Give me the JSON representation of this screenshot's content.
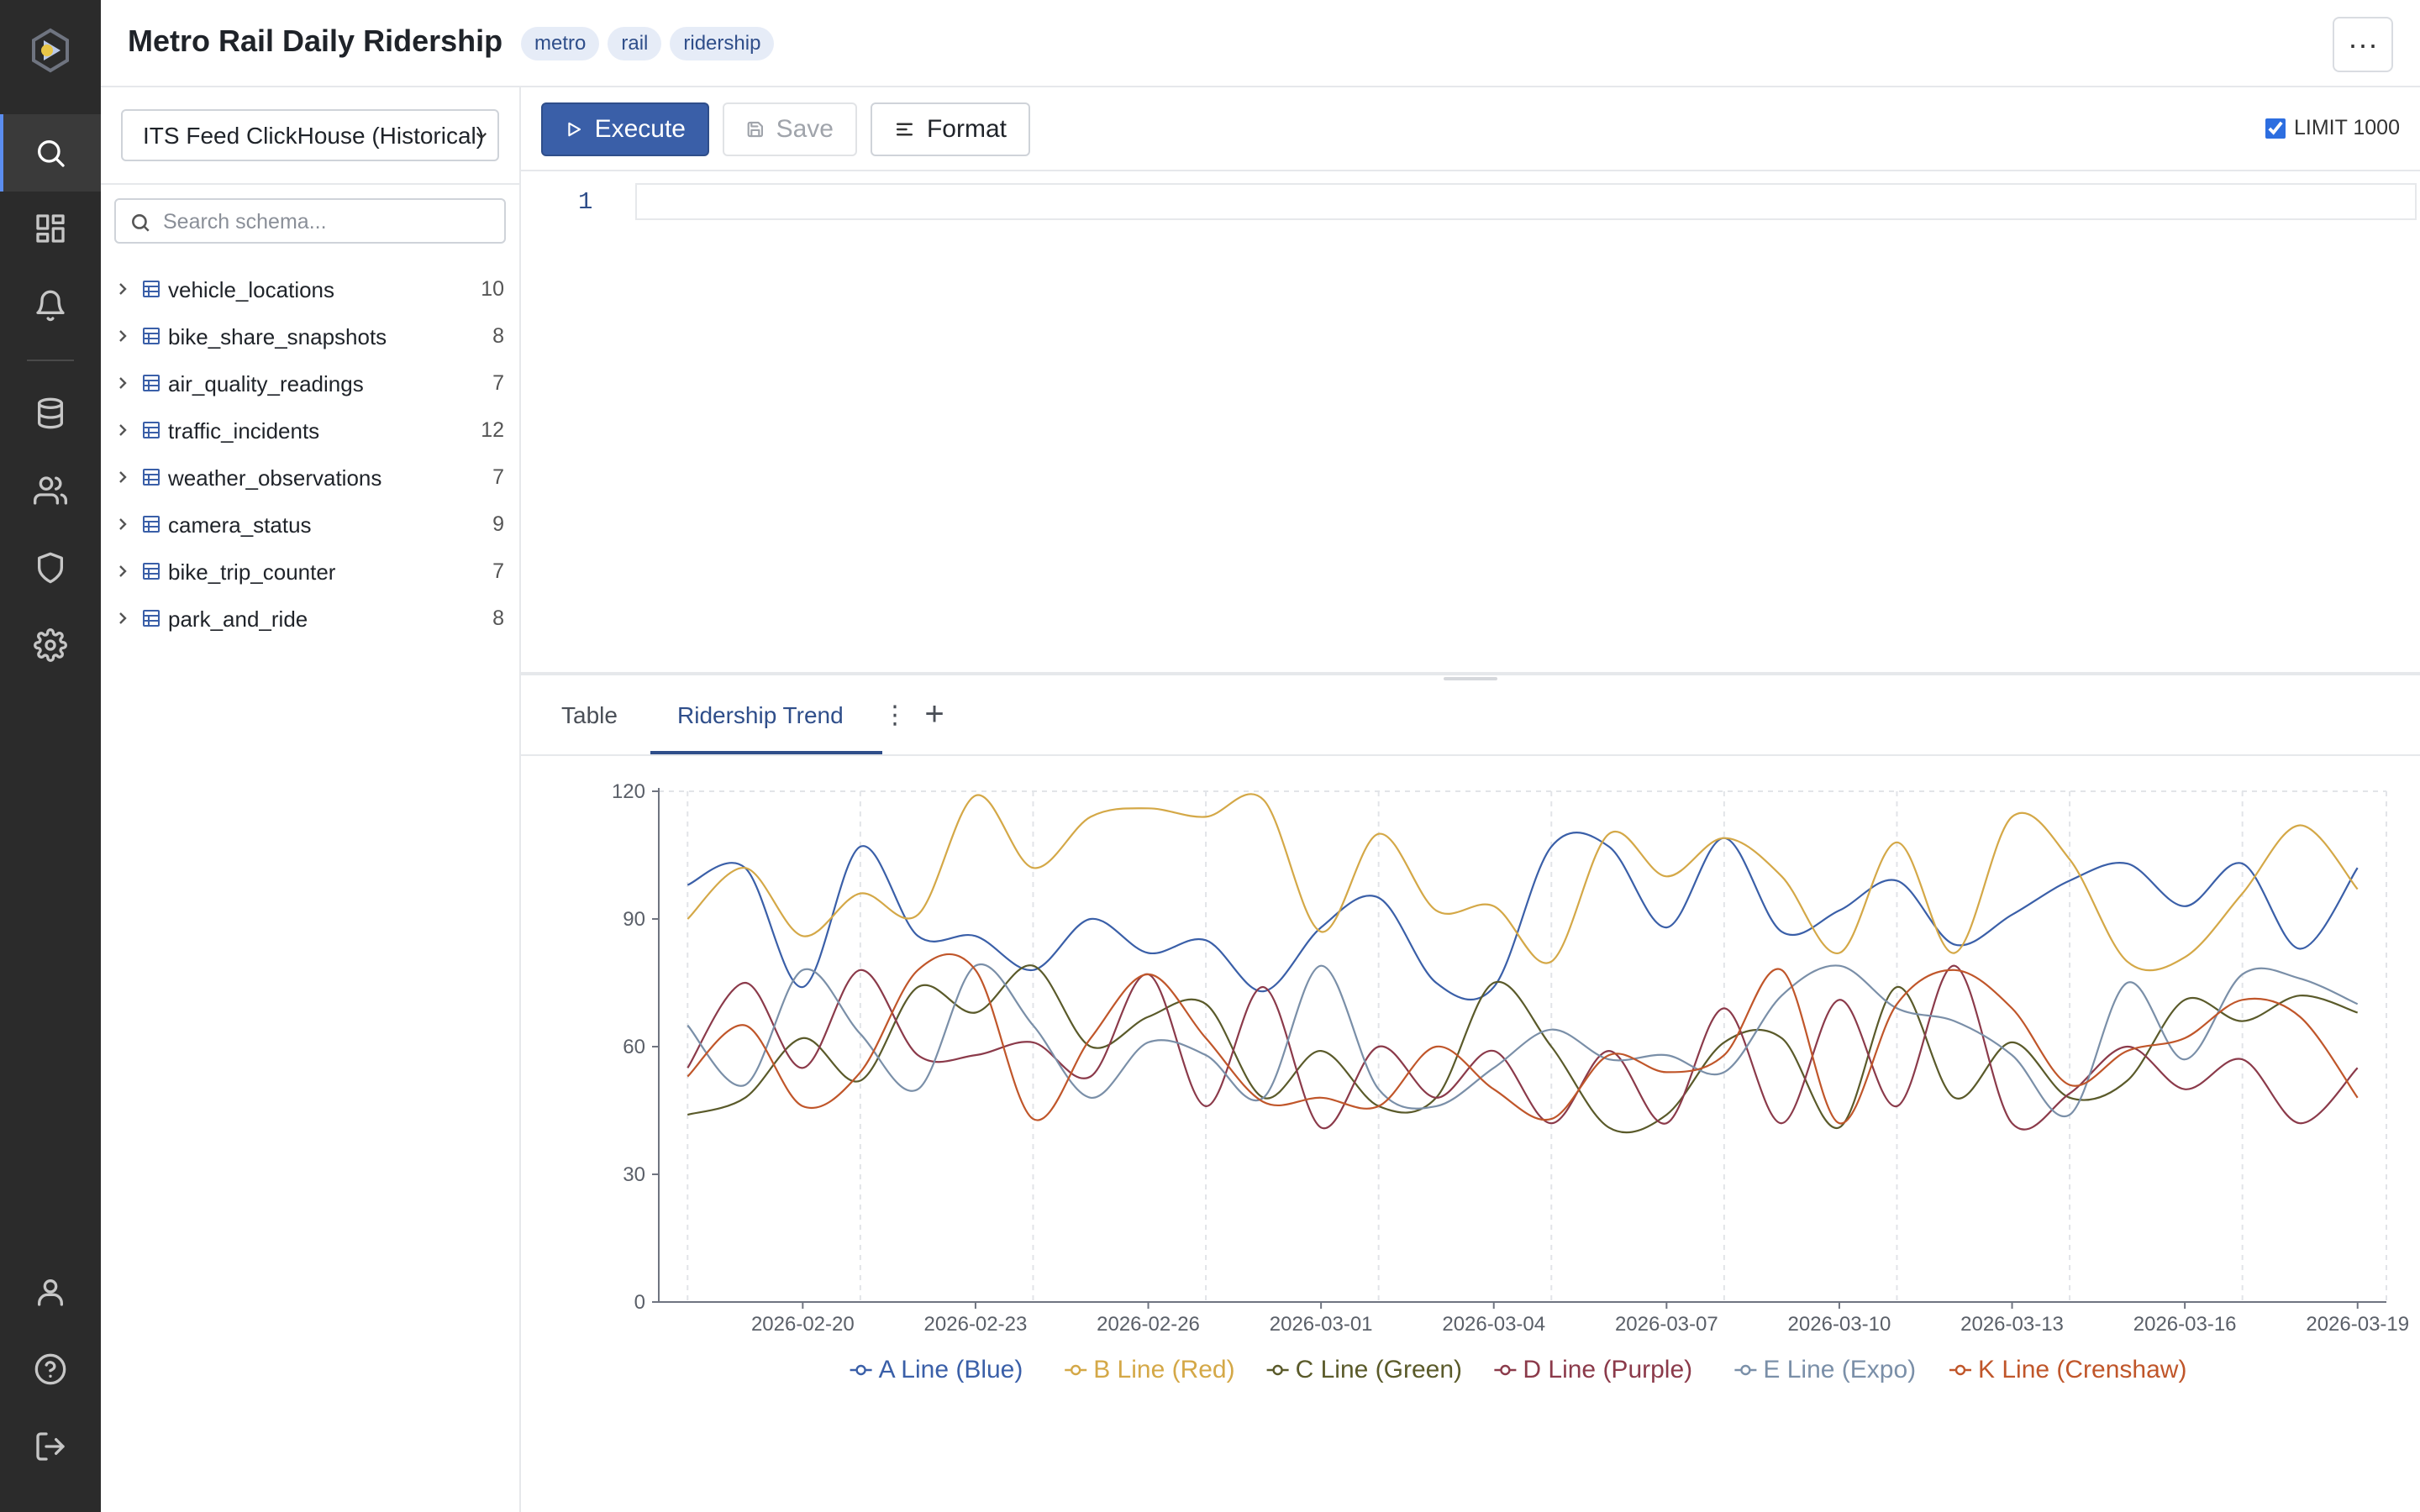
{
  "app": {
    "title": "Metro Rail Daily Ridership",
    "tags": [
      "metro",
      "rail",
      "ridership"
    ],
    "more_label": "···"
  },
  "nav": {
    "items": [
      "search-icon",
      "dashboard-icon",
      "bell-icon",
      "database-icon",
      "users-icon",
      "shield-icon",
      "gear-icon"
    ],
    "bottom": [
      "user-icon",
      "help-icon",
      "logout-icon"
    ],
    "active": "search-icon",
    "accent": "#5b8def"
  },
  "schema": {
    "database": "ITS Feed ClickHouse (Historical)",
    "search_placeholder": "Search schema...",
    "tables": [
      {
        "name": "vehicle_locations",
        "count": "10"
      },
      {
        "name": "bike_share_snapshots",
        "count": "8"
      },
      {
        "name": "air_quality_readings",
        "count": "7"
      },
      {
        "name": "traffic_incidents",
        "count": "12"
      },
      {
        "name": "weather_observations",
        "count": "7"
      },
      {
        "name": "camera_status",
        "count": "9"
      },
      {
        "name": "bike_trip_counter",
        "count": "7"
      },
      {
        "name": "park_and_ride",
        "count": "8"
      }
    ]
  },
  "toolbar": {
    "execute": "Execute",
    "save": "Save",
    "format": "Format",
    "limit": "LIMIT 1000",
    "limit_checked": true
  },
  "editor": {
    "line_number": "1",
    "query": ""
  },
  "results": {
    "tab_table": "Table",
    "tab_chart": "Ridership Trend",
    "add": "+"
  },
  "chart_data": {
    "type": "line",
    "ylim": [
      0,
      120
    ],
    "yticks": [
      0,
      30,
      60,
      90,
      120
    ],
    "x": [
      "2026-02-18",
      "2026-02-19",
      "2026-02-20",
      "2026-02-21",
      "2026-02-22",
      "2026-02-23",
      "2026-02-24",
      "2026-02-25",
      "2026-02-26",
      "2026-02-27",
      "2026-02-28",
      "2026-03-01",
      "2026-03-02",
      "2026-03-03",
      "2026-03-04",
      "2026-03-05",
      "2026-03-06",
      "2026-03-07",
      "2026-03-08",
      "2026-03-09",
      "2026-03-10",
      "2026-03-11",
      "2026-03-12",
      "2026-03-13",
      "2026-03-14",
      "2026-03-15",
      "2026-03-16",
      "2026-03-17",
      "2026-03-18",
      "2026-03-19"
    ],
    "xticks": [
      "2026-02-20",
      "2026-02-23",
      "2026-02-26",
      "2026-03-01",
      "2026-03-04",
      "2026-03-07",
      "2026-03-10",
      "2026-03-13",
      "2026-03-16",
      "2026-03-19"
    ],
    "series": [
      {
        "name": "A Line (Blue)",
        "color": "#3a5fa8",
        "values": [
          98,
          102,
          74,
          107,
          86,
          86,
          78,
          90,
          82,
          85,
          73,
          88,
          95,
          75,
          74,
          107,
          107,
          88,
          109,
          87,
          92,
          99,
          84,
          91,
          99,
          103,
          93,
          103,
          83,
          102
        ]
      },
      {
        "name": "B Line (Red)",
        "color": "#d4a847",
        "values": [
          90,
          102,
          86,
          96,
          91,
          119,
          102,
          114,
          116,
          114,
          118,
          87,
          110,
          92,
          93,
          80,
          110,
          100,
          109,
          100,
          82,
          108,
          82,
          114,
          104,
          80,
          81,
          96,
          112,
          97
        ]
      },
      {
        "name": "C Line (Green)",
        "color": "#5a5a2a",
        "values": [
          44,
          48,
          62,
          52,
          74,
          68,
          79,
          60,
          67,
          70,
          48,
          59,
          46,
          48,
          75,
          60,
          41,
          44,
          61,
          62,
          41,
          74,
          48,
          61,
          48,
          52,
          71,
          66,
          72,
          68
        ]
      },
      {
        "name": "D Line (Purple)",
        "color": "#8b3a4a",
        "values": [
          55,
          75,
          55,
          78,
          58,
          58,
          61,
          53,
          77,
          46,
          74,
          41,
          60,
          48,
          59,
          42,
          59,
          42,
          69,
          42,
          71,
          46,
          79,
          42,
          49,
          60,
          50,
          57,
          42,
          55
        ]
      },
      {
        "name": "E Line (Expo)",
        "color": "#7a8fa8",
        "values": [
          65,
          51,
          78,
          63,
          50,
          79,
          65,
          48,
          61,
          58,
          48,
          79,
          50,
          46,
          55,
          64,
          57,
          58,
          54,
          72,
          79,
          69,
          66,
          58,
          44,
          75,
          57,
          77,
          76,
          70
        ]
      },
      {
        "name": "K Line (Crenshaw)",
        "color": "#c0562a",
        "values": [
          53,
          65,
          46,
          54,
          78,
          78,
          43,
          62,
          77,
          62,
          47,
          48,
          46,
          60,
          50,
          43,
          58,
          54,
          58,
          78,
          42,
          70,
          78,
          69,
          51,
          59,
          62,
          71,
          67,
          48
        ]
      }
    ]
  }
}
